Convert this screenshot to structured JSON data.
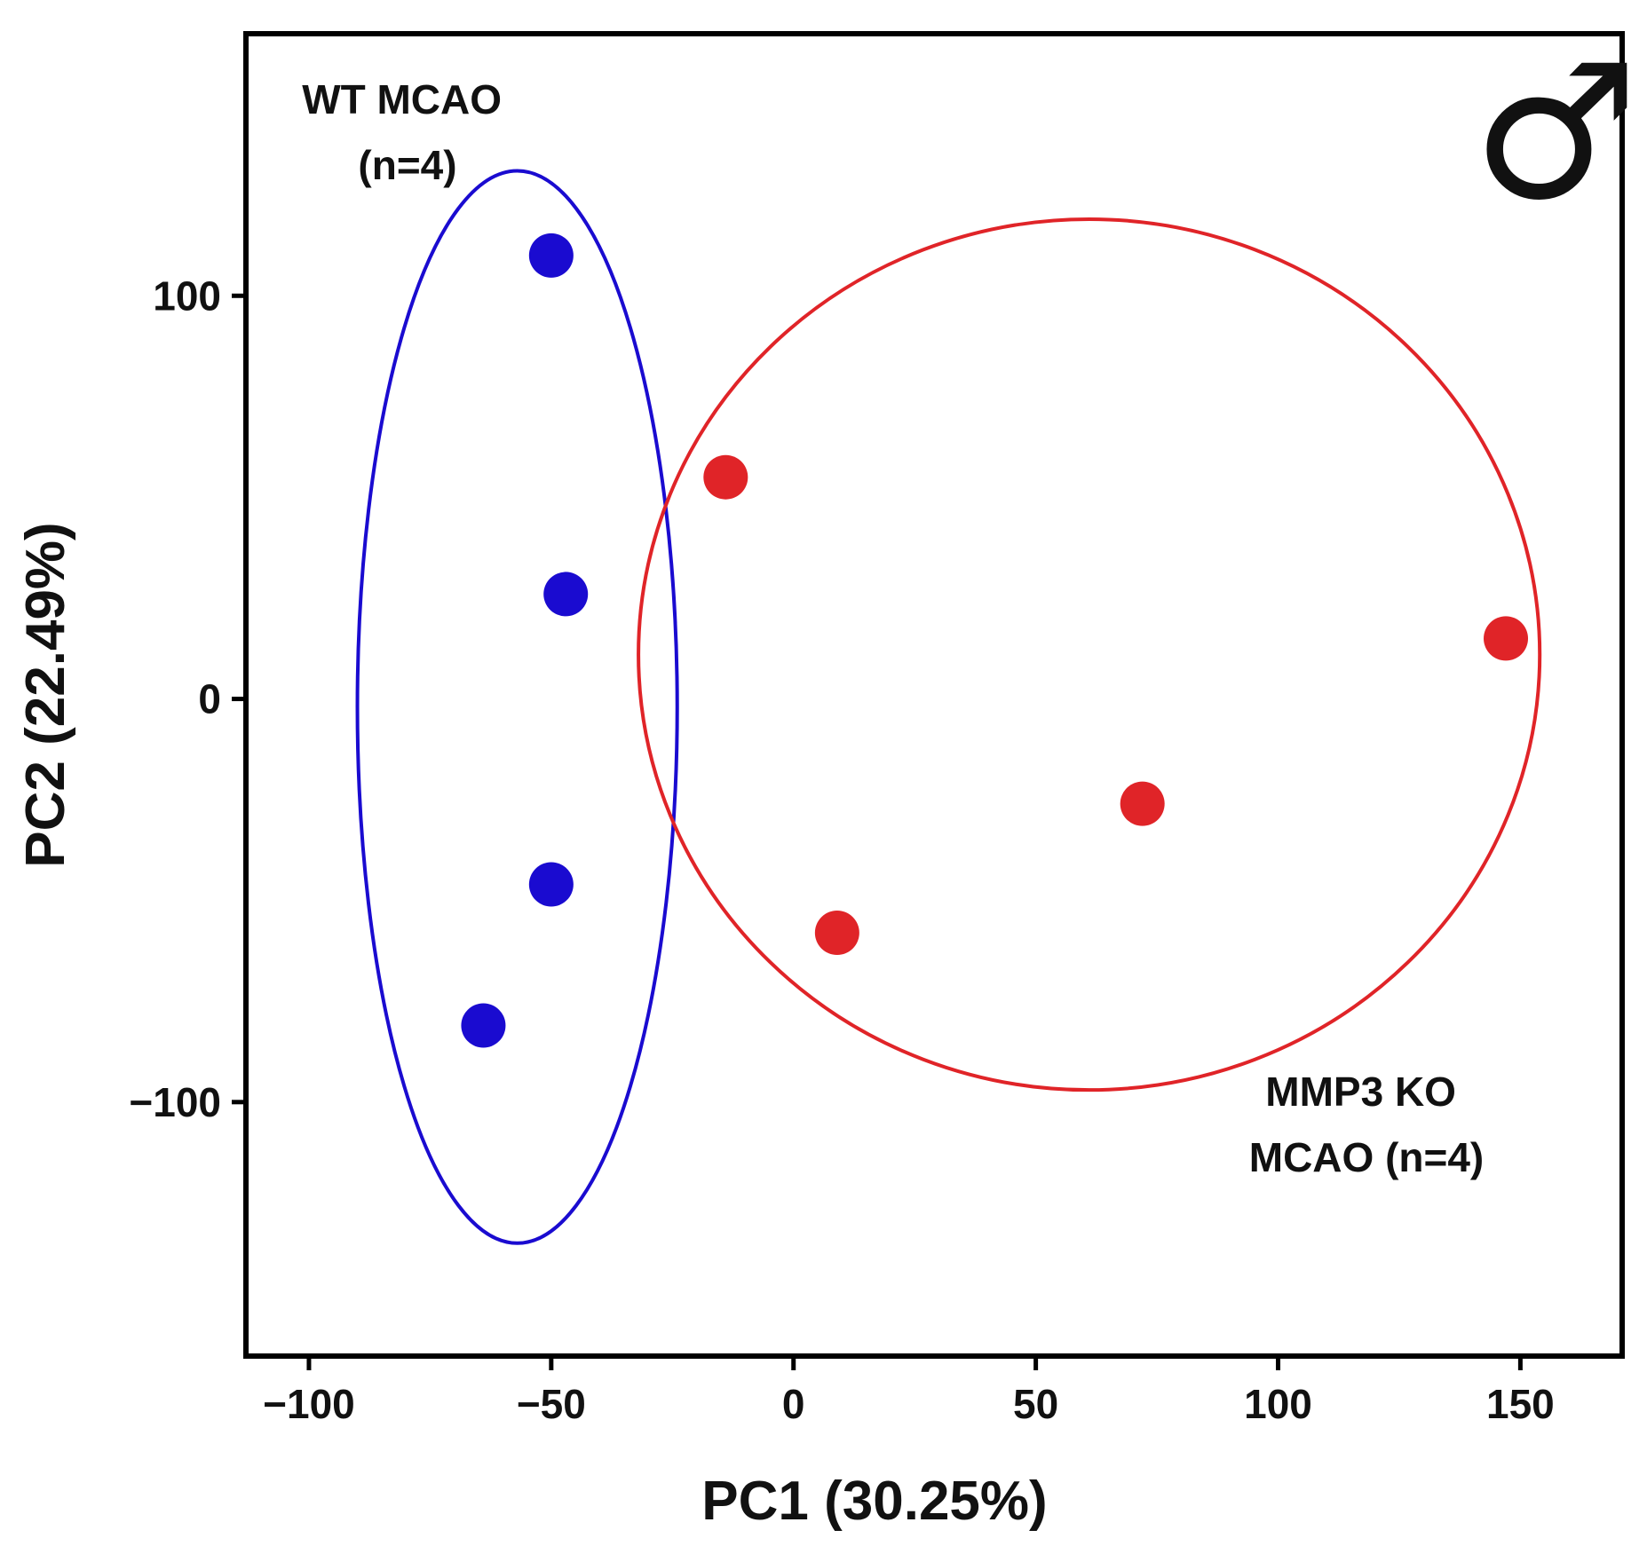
{
  "chart_data": {
    "type": "scatter",
    "title": "",
    "xlabel": "PC1 (30.25%)",
    "ylabel": "PC2 (22.49%)",
    "xlim": [
      -113,
      171
    ],
    "ylim": [
      -163,
      165
    ],
    "xticks": [
      -100,
      -50,
      0,
      50,
      100,
      150
    ],
    "yticks": [
      -100,
      0,
      100
    ],
    "xtick_labels": [
      "−100",
      "−50",
      "0",
      "50",
      "100",
      "150"
    ],
    "ytick_labels": [
      "−100",
      "0",
      "100"
    ],
    "grid": false,
    "symbol": "♂",
    "series": [
      {
        "name": "WT MCAO",
        "label_lines": [
          "WT MCAO",
          "(n=4)"
        ],
        "color": "#1a0bd0",
        "points": [
          {
            "x": -50,
            "y": 110
          },
          {
            "x": -47,
            "y": 26
          },
          {
            "x": -50,
            "y": -46
          },
          {
            "x": -64,
            "y": -81
          }
        ],
        "ellipse": {
          "cx": -57,
          "cy": -2,
          "rx": 33,
          "ry": 133
        }
      },
      {
        "name": "MMP3 KO MCAO",
        "label_lines": [
          "MMP3 KO",
          "MCAO (n=4)"
        ],
        "color": "#e02428",
        "points": [
          {
            "x": -14,
            "y": 55
          },
          {
            "x": 147,
            "y": 15
          },
          {
            "x": 72,
            "y": -26
          },
          {
            "x": 9,
            "y": -58
          }
        ],
        "ellipse": {
          "cx": 61,
          "cy": 11,
          "rx": 93,
          "ry": 108
        }
      }
    ]
  }
}
